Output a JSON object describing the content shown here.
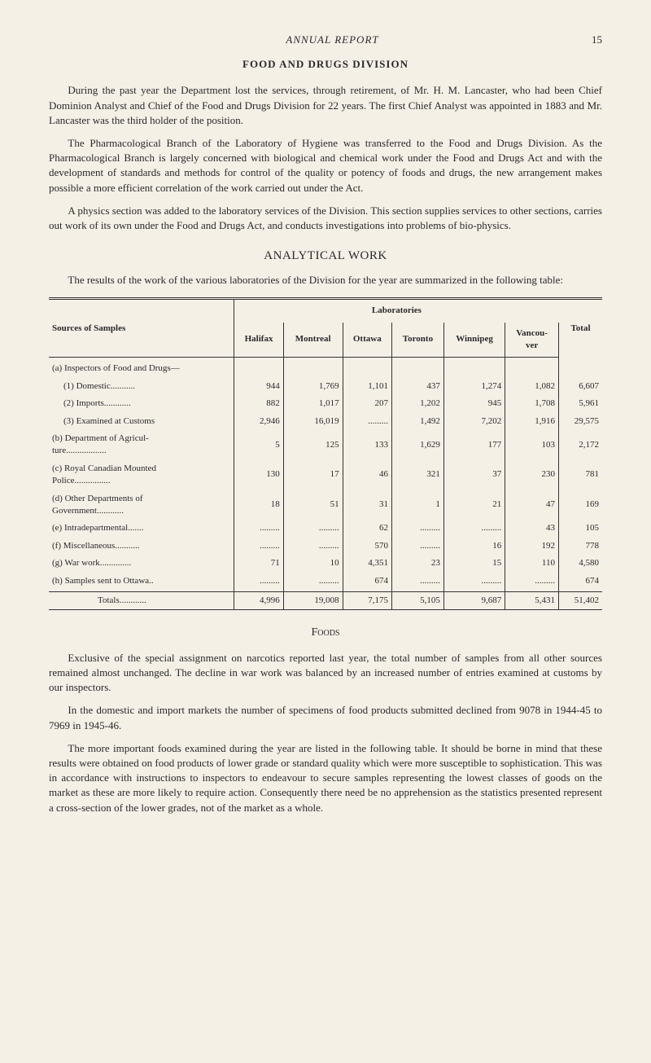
{
  "header": {
    "running_head": "ANNUAL REPORT",
    "page_number": "15"
  },
  "title": "FOOD AND DRUGS DIVISION",
  "paragraphs": {
    "p1": "During the past year the Department lost the services, through retirement, of Mr. H. M. Lancaster, who had been Chief Dominion Analyst and Chief of the Food and Drugs Division for 22 years. The first Chief Analyst was appointed in 1883 and Mr. Lancaster was the third holder of the position.",
    "p2": "The Pharmacological Branch of the Laboratory of Hygiene was transferred to the Food and Drugs Division. As the Pharmacological Branch is largely concerned with biological and chemical work under the Food and Drugs Act and with the development of standards and methods for control of the quality or potency of foods and drugs, the new arrangement makes possible a more efficient correlation of the work carried out under the Act.",
    "p3": "A physics section was added to the laboratory services of the Division. This section supplies services to other sections, carries out work of its own under the Food and Drugs Act, and conducts investigations into problems of bio-physics."
  },
  "analytical": {
    "heading": "ANALYTICAL WORK",
    "intro": "The results of the work of the various laboratories of the Division for the year are summarized in the following table:"
  },
  "table": {
    "col_source": "Sources of Samples",
    "col_lab": "Laboratories",
    "cols": [
      "Halifax",
      "Montreal",
      "Ottawa",
      "Toronto",
      "Winnipeg",
      "Vancou-\nver"
    ],
    "col_total": "Total",
    "group_a": "(a) Inspectors of Food and Drugs—",
    "rows": [
      {
        "label": "(1) Domestic...........",
        "vals": [
          "944",
          "1,769",
          "1,101",
          "437",
          "1,274",
          "1,082",
          "6,607"
        ]
      },
      {
        "label": "(2) Imports............",
        "vals": [
          "882",
          "1,017",
          "207",
          "1,202",
          "945",
          "1,708",
          "5,961"
        ]
      },
      {
        "label": "(3) Examined at Customs",
        "vals": [
          "2,946",
          "16,019",
          ".........",
          "1,492",
          "7,202",
          "1,916",
          "29,575"
        ]
      },
      {
        "label": "(b) Department of Agricul-\n   ture..................",
        "vals": [
          "5",
          "125",
          "133",
          "1,629",
          "177",
          "103",
          "2,172"
        ]
      },
      {
        "label": "(c) Royal Canadian Mounted\n   Police................",
        "vals": [
          "130",
          "17",
          "46",
          "321",
          "37",
          "230",
          "781"
        ]
      },
      {
        "label": "(d) Other Departments of\n   Government............",
        "vals": [
          "18",
          "51",
          "31",
          "1",
          "21",
          "47",
          "169"
        ]
      },
      {
        "label": "(e) Intradepartmental.......",
        "vals": [
          ".........",
          ".........",
          "62",
          ".........",
          ".........",
          "43",
          "105"
        ]
      },
      {
        "label": "(f) Miscellaneous...........",
        "vals": [
          ".........",
          ".........",
          "570",
          ".........",
          "16",
          "192",
          "778"
        ]
      },
      {
        "label": "(g) War work..............",
        "vals": [
          "71",
          "10",
          "4,351",
          "23",
          "15",
          "110",
          "4,580"
        ]
      },
      {
        "label": "(h) Samples sent to Ottawa..",
        "vals": [
          ".........",
          ".........",
          "674",
          ".........",
          ".........",
          ".........",
          "674"
        ]
      }
    ],
    "totals": {
      "label": "Totals............",
      "vals": [
        "4,996",
        "19,008",
        "7,175",
        "5,105",
        "9,687",
        "5,431",
        "51,402"
      ]
    }
  },
  "foods": {
    "heading": "Foods",
    "p1": "Exclusive of the special assignment on narcotics reported last year, the total number of samples from all other sources remained almost unchanged. The decline in war work was balanced by an increased number of entries examined at customs by our inspectors.",
    "p2": "In the domestic and import markets the number of specimens of food products submitted declined from 9078 in 1944-45 to 7969 in 1945-46.",
    "p3": "The more important foods examined during the year are listed in the follow­ing table. It should be borne in mind that these results were obtained on food products of lower grade or standard quality which were more susceptible to sophistication. This was in accordance with instructions to inspectors to endeavour to secure samples representing the lowest classes of goods on the market as these are more likely to require action. Consequently there need be no apprehension as the statistics presented represent a cross-section of the lower grades, not of the market as a whole."
  }
}
